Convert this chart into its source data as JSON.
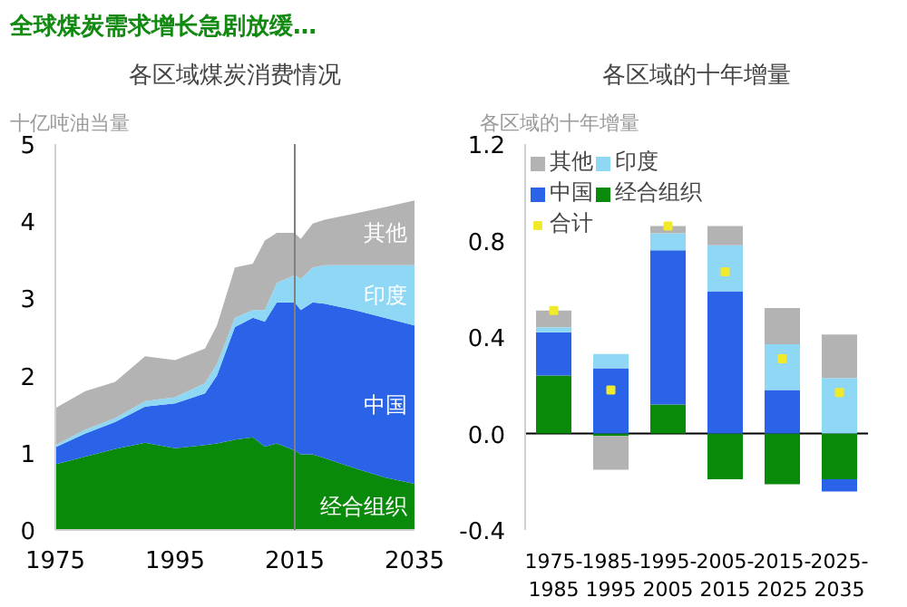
{
  "chart_data": [
    {
      "type": "area",
      "stacked": true,
      "title": "全球煤炭需求增长急剧放缓…",
      "subtitle": "各区域煤炭消费情况",
      "ylabel": "十亿吨油当量",
      "x": [
        1975,
        1980,
        1985,
        1990,
        1995,
        2000,
        2002,
        2005,
        2008,
        2010,
        2012,
        2015,
        2016,
        2018,
        2020,
        2025,
        2030,
        2035
      ],
      "series": [
        {
          "name": "经合组织",
          "color": "#0a8a0a",
          "values": [
            0.85,
            0.95,
            1.05,
            1.13,
            1.06,
            1.1,
            1.12,
            1.17,
            1.2,
            1.08,
            1.12,
            1.03,
            0.98,
            0.98,
            0.93,
            0.8,
            0.68,
            0.6
          ]
        },
        {
          "name": "中国",
          "color": "#2a63e8",
          "values": [
            0.22,
            0.3,
            0.35,
            0.47,
            0.58,
            0.67,
            0.88,
            1.46,
            1.55,
            1.62,
            1.83,
            1.92,
            1.87,
            1.97,
            2.0,
            2.05,
            2.07,
            2.05
          ]
        },
        {
          "name": "印度",
          "color": "#8fd8f5",
          "values": [
            0.03,
            0.05,
            0.05,
            0.07,
            0.08,
            0.13,
            0.15,
            0.12,
            0.1,
            0.15,
            0.25,
            0.35,
            0.4,
            0.45,
            0.5,
            0.58,
            0.68,
            0.78
          ]
        },
        {
          "name": "其他",
          "color": "#b3b3b3",
          "values": [
            0.48,
            0.5,
            0.47,
            0.58,
            0.48,
            0.45,
            0.5,
            0.65,
            0.6,
            0.9,
            0.65,
            0.55,
            0.52,
            0.57,
            0.59,
            0.67,
            0.75,
            0.84
          ]
        }
      ],
      "xlim": [
        1975,
        2035
      ],
      "xticks": [
        1975,
        1995,
        2015,
        2035
      ],
      "ylim": [
        0,
        5
      ],
      "yticks": [
        0,
        1,
        2,
        3,
        4,
        5
      ],
      "ref_lines": [
        {
          "axis": "x",
          "value": 2015,
          "color": "#808080"
        }
      ],
      "grid": false
    },
    {
      "type": "bar",
      "stacked": true,
      "title": "各区域的十年增量",
      "ylabel": "各区域的十年增量",
      "categories": [
        "1975-1985",
        "1985-1995",
        "1995-2005",
        "2005-2015",
        "2015-2025",
        "2025-2035"
      ],
      "series": [
        {
          "name": "经合组织",
          "color": "#0a8a0a",
          "values": [
            0.24,
            -0.01,
            0.12,
            -0.19,
            -0.21,
            -0.19
          ]
        },
        {
          "name": "中国",
          "color": "#2a63e8",
          "values": [
            0.18,
            0.27,
            0.64,
            0.59,
            0.18,
            -0.05
          ]
        },
        {
          "name": "印度",
          "color": "#8fd8f5",
          "values": [
            0.02,
            0.06,
            0.07,
            0.19,
            0.19,
            0.23
          ]
        },
        {
          "name": "其他",
          "color": "#b3b3b3",
          "values": [
            0.07,
            -0.14,
            0.03,
            0.08,
            0.15,
            0.18
          ]
        },
        {
          "name": "合计",
          "type": "scatter",
          "marker": "square",
          "color": "#f0ea2a",
          "values": [
            0.51,
            0.18,
            0.86,
            0.67,
            0.31,
            0.17
          ]
        }
      ],
      "ylim": [
        -0.4,
        1.2
      ],
      "yticks": [
        {
          "value": -0.4,
          "label": "-0.4"
        },
        {
          "value": 0,
          "label": "0.0"
        },
        0.4,
        0.8,
        1.2
      ],
      "ref_lines": [
        {
          "axis": "y",
          "value": 0,
          "color": "#000000"
        }
      ],
      "grid": false,
      "legend": "top left"
    }
  ]
}
